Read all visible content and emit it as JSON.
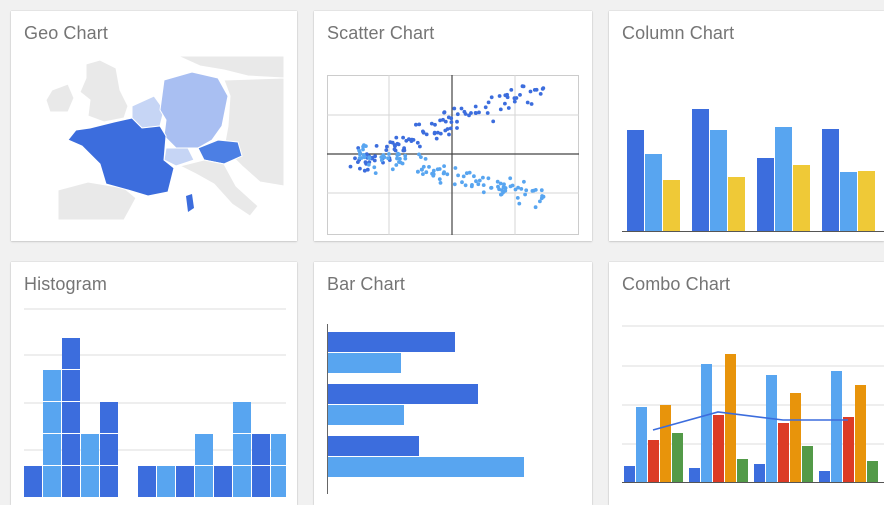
{
  "gallery": {
    "cards": [
      {
        "title": "Geo Chart",
        "icon": "geo-chart-map"
      },
      {
        "title": "Scatter Chart",
        "icon": "scatter-chart"
      },
      {
        "title": "Column Chart",
        "icon": "column-chart"
      },
      {
        "title": "Histogram",
        "icon": "histogram-chart"
      },
      {
        "title": "Bar Chart",
        "icon": "bar-chart"
      },
      {
        "title": "Combo Chart",
        "icon": "combo-chart"
      }
    ]
  },
  "colors": {
    "blue_dark": "#3c6ddd",
    "blue_mid": "#4c7fe4",
    "blue_light": "#58a5f0",
    "blue_pale": "#a9bff2",
    "yellow": "#efc937",
    "orange": "#e8940b",
    "red": "#dc3b26",
    "green": "#539a48",
    "map_land": "#e9e9e9",
    "title_text": "#757575"
  }
}
